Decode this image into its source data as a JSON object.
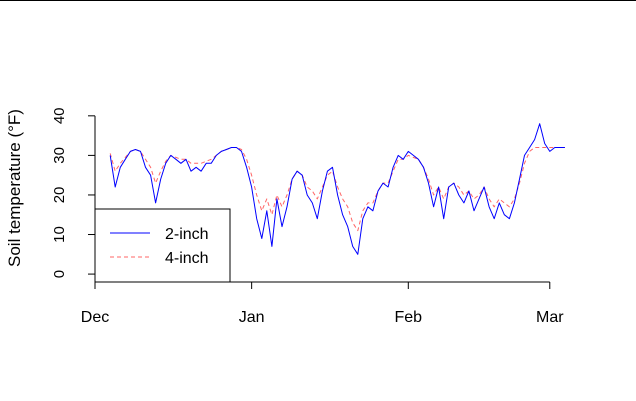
{
  "chart_data": {
    "type": "line",
    "title": "",
    "xlabel": "",
    "ylabel": "Soil temperature (°F)",
    "ylim": [
      -2,
      44
    ],
    "yticks": [
      0,
      10,
      20,
      30,
      40
    ],
    "xlim": [
      "2010-12-01",
      "2011-03-05"
    ],
    "xticks": [
      {
        "date": "2010-12-01",
        "label": "Dec"
      },
      {
        "date": "2011-01-01",
        "label": "Jan"
      },
      {
        "date": "2011-02-01",
        "label": "Feb"
      },
      {
        "date": "2011-03-01",
        "label": "Mar"
      }
    ],
    "grid": false,
    "legend": "bottom-left",
    "series": [
      {
        "name": "2-inch",
        "color": "#0000ff",
        "dash": "solid",
        "points": [
          [
            "2010-12-04",
            30
          ],
          [
            "2010-12-05",
            22
          ],
          [
            "2010-12-06",
            27
          ],
          [
            "2010-12-07",
            29
          ],
          [
            "2010-12-08",
            31
          ],
          [
            "2010-12-09",
            31.5
          ],
          [
            "2010-12-10",
            31
          ],
          [
            "2010-12-11",
            27
          ],
          [
            "2010-12-12",
            25
          ],
          [
            "2010-12-13",
            18
          ],
          [
            "2010-12-14",
            24
          ],
          [
            "2010-12-15",
            28
          ],
          [
            "2010-12-16",
            30
          ],
          [
            "2010-12-17",
            29
          ],
          [
            "2010-12-18",
            28
          ],
          [
            "2010-12-19",
            29
          ],
          [
            "2010-12-20",
            26
          ],
          [
            "2010-12-21",
            27
          ],
          [
            "2010-12-22",
            26
          ],
          [
            "2010-12-23",
            28
          ],
          [
            "2010-12-24",
            28
          ],
          [
            "2010-12-25",
            30
          ],
          [
            "2010-12-26",
            31
          ],
          [
            "2010-12-27",
            31.5
          ],
          [
            "2010-12-28",
            32
          ],
          [
            "2010-12-29",
            32
          ],
          [
            "2010-12-30",
            31
          ],
          [
            "2010-12-31",
            27
          ],
          [
            "2011-01-01",
            22
          ],
          [
            "2011-01-02",
            14
          ],
          [
            "2011-01-03",
            9
          ],
          [
            "2011-01-04",
            16
          ],
          [
            "2011-01-05",
            7
          ],
          [
            "2011-01-06",
            19
          ],
          [
            "2011-01-07",
            12
          ],
          [
            "2011-01-08",
            17
          ],
          [
            "2011-01-09",
            24
          ],
          [
            "2011-01-10",
            26
          ],
          [
            "2011-01-11",
            25
          ],
          [
            "2011-01-12",
            20
          ],
          [
            "2011-01-13",
            18
          ],
          [
            "2011-01-14",
            14
          ],
          [
            "2011-01-15",
            21
          ],
          [
            "2011-01-16",
            26
          ],
          [
            "2011-01-17",
            27
          ],
          [
            "2011-01-18",
            20
          ],
          [
            "2011-01-19",
            15
          ],
          [
            "2011-01-20",
            12
          ],
          [
            "2011-01-21",
            7
          ],
          [
            "2011-01-22",
            5
          ],
          [
            "2011-01-23",
            14
          ],
          [
            "2011-01-24",
            17
          ],
          [
            "2011-01-25",
            16
          ],
          [
            "2011-01-26",
            21
          ],
          [
            "2011-01-27",
            23
          ],
          [
            "2011-01-28",
            22
          ],
          [
            "2011-01-29",
            27
          ],
          [
            "2011-01-30",
            30
          ],
          [
            "2011-01-31",
            29
          ],
          [
            "2011-02-01",
            31
          ],
          [
            "2011-02-02",
            30
          ],
          [
            "2011-02-03",
            29
          ],
          [
            "2011-02-04",
            27
          ],
          [
            "2011-02-05",
            23
          ],
          [
            "2011-02-06",
            17
          ],
          [
            "2011-02-07",
            22
          ],
          [
            "2011-02-08",
            14
          ],
          [
            "2011-02-09",
            22
          ],
          [
            "2011-02-10",
            23
          ],
          [
            "2011-02-11",
            20
          ],
          [
            "2011-02-12",
            18
          ],
          [
            "2011-02-13",
            21
          ],
          [
            "2011-02-14",
            16
          ],
          [
            "2011-02-15",
            19
          ],
          [
            "2011-02-16",
            22
          ],
          [
            "2011-02-17",
            17
          ],
          [
            "2011-02-18",
            14
          ],
          [
            "2011-02-19",
            18
          ],
          [
            "2011-02-20",
            15
          ],
          [
            "2011-02-21",
            14
          ],
          [
            "2011-02-22",
            18
          ],
          [
            "2011-02-23",
            24
          ],
          [
            "2011-02-24",
            30
          ],
          [
            "2011-02-25",
            32
          ],
          [
            "2011-02-26",
            34
          ],
          [
            "2011-02-27",
            38
          ],
          [
            "2011-02-28",
            33
          ],
          [
            "2011-03-01",
            31
          ],
          [
            "2011-03-02",
            32
          ],
          [
            "2011-03-03",
            32
          ],
          [
            "2011-03-04",
            32
          ]
        ]
      },
      {
        "name": "4-inch",
        "color": "#ff6666",
        "dash": "dashed",
        "points": [
          [
            "2010-12-04",
            30.5
          ],
          [
            "2010-12-05",
            26
          ],
          [
            "2010-12-06",
            28
          ],
          [
            "2010-12-07",
            29.5
          ],
          [
            "2010-12-08",
            31
          ],
          [
            "2010-12-09",
            31.5
          ],
          [
            "2010-12-10",
            31
          ],
          [
            "2010-12-11",
            29
          ],
          [
            "2010-12-12",
            27
          ],
          [
            "2010-12-13",
            23
          ],
          [
            "2010-12-14",
            26
          ],
          [
            "2010-12-15",
            28.5
          ],
          [
            "2010-12-16",
            30
          ],
          [
            "2010-12-17",
            29.5
          ],
          [
            "2010-12-18",
            29
          ],
          [
            "2010-12-19",
            29
          ],
          [
            "2010-12-20",
            28
          ],
          [
            "2010-12-21",
            28
          ],
          [
            "2010-12-22",
            28
          ],
          [
            "2010-12-23",
            28.5
          ],
          [
            "2010-12-24",
            29
          ],
          [
            "2010-12-25",
            30
          ],
          [
            "2010-12-26",
            31
          ],
          [
            "2010-12-27",
            31.5
          ],
          [
            "2010-12-28",
            32
          ],
          [
            "2010-12-29",
            32
          ],
          [
            "2010-12-30",
            31.5
          ],
          [
            "2010-12-31",
            29
          ],
          [
            "2011-01-01",
            25
          ],
          [
            "2011-01-02",
            20
          ],
          [
            "2011-01-03",
            16
          ],
          [
            "2011-01-04",
            19
          ],
          [
            "2011-01-05",
            15
          ],
          [
            "2011-01-06",
            20
          ],
          [
            "2011-01-07",
            17
          ],
          [
            "2011-01-08",
            20
          ],
          [
            "2011-01-09",
            24
          ],
          [
            "2011-01-10",
            26
          ],
          [
            "2011-01-11",
            25
          ],
          [
            "2011-01-12",
            22
          ],
          [
            "2011-01-13",
            21
          ],
          [
            "2011-01-14",
            19
          ],
          [
            "2011-01-15",
            22
          ],
          [
            "2011-01-16",
            25
          ],
          [
            "2011-01-17",
            26
          ],
          [
            "2011-01-18",
            22
          ],
          [
            "2011-01-19",
            19
          ],
          [
            "2011-01-20",
            17
          ],
          [
            "2011-01-21",
            13
          ],
          [
            "2011-01-22",
            11
          ],
          [
            "2011-01-23",
            16
          ],
          [
            "2011-01-24",
            18
          ],
          [
            "2011-01-25",
            18
          ],
          [
            "2011-01-26",
            21
          ],
          [
            "2011-01-27",
            23
          ],
          [
            "2011-01-28",
            23
          ],
          [
            "2011-01-29",
            26
          ],
          [
            "2011-01-30",
            29
          ],
          [
            "2011-01-31",
            29
          ],
          [
            "2011-02-01",
            30
          ],
          [
            "2011-02-02",
            29.5
          ],
          [
            "2011-02-03",
            29
          ],
          [
            "2011-02-04",
            27
          ],
          [
            "2011-02-05",
            24
          ],
          [
            "2011-02-06",
            20
          ],
          [
            "2011-02-07",
            22
          ],
          [
            "2011-02-08",
            19
          ],
          [
            "2011-02-09",
            22
          ],
          [
            "2011-02-10",
            23
          ],
          [
            "2011-02-11",
            22
          ],
          [
            "2011-02-12",
            20
          ],
          [
            "2011-02-13",
            21
          ],
          [
            "2011-02-14",
            19
          ],
          [
            "2011-02-15",
            20
          ],
          [
            "2011-02-16",
            22
          ],
          [
            "2011-02-17",
            19
          ],
          [
            "2011-02-18",
            17
          ],
          [
            "2011-02-19",
            19
          ],
          [
            "2011-02-20",
            18
          ],
          [
            "2011-02-21",
            17
          ],
          [
            "2011-02-22",
            19
          ],
          [
            "2011-02-23",
            23
          ],
          [
            "2011-02-24",
            28
          ],
          [
            "2011-02-25",
            31
          ],
          [
            "2011-02-26",
            32
          ],
          [
            "2011-02-27",
            32
          ],
          [
            "2011-02-28",
            32
          ],
          [
            "2011-03-01",
            32
          ],
          [
            "2011-03-02",
            32
          ],
          [
            "2011-03-03",
            32
          ],
          [
            "2011-03-04",
            32
          ]
        ]
      }
    ]
  }
}
